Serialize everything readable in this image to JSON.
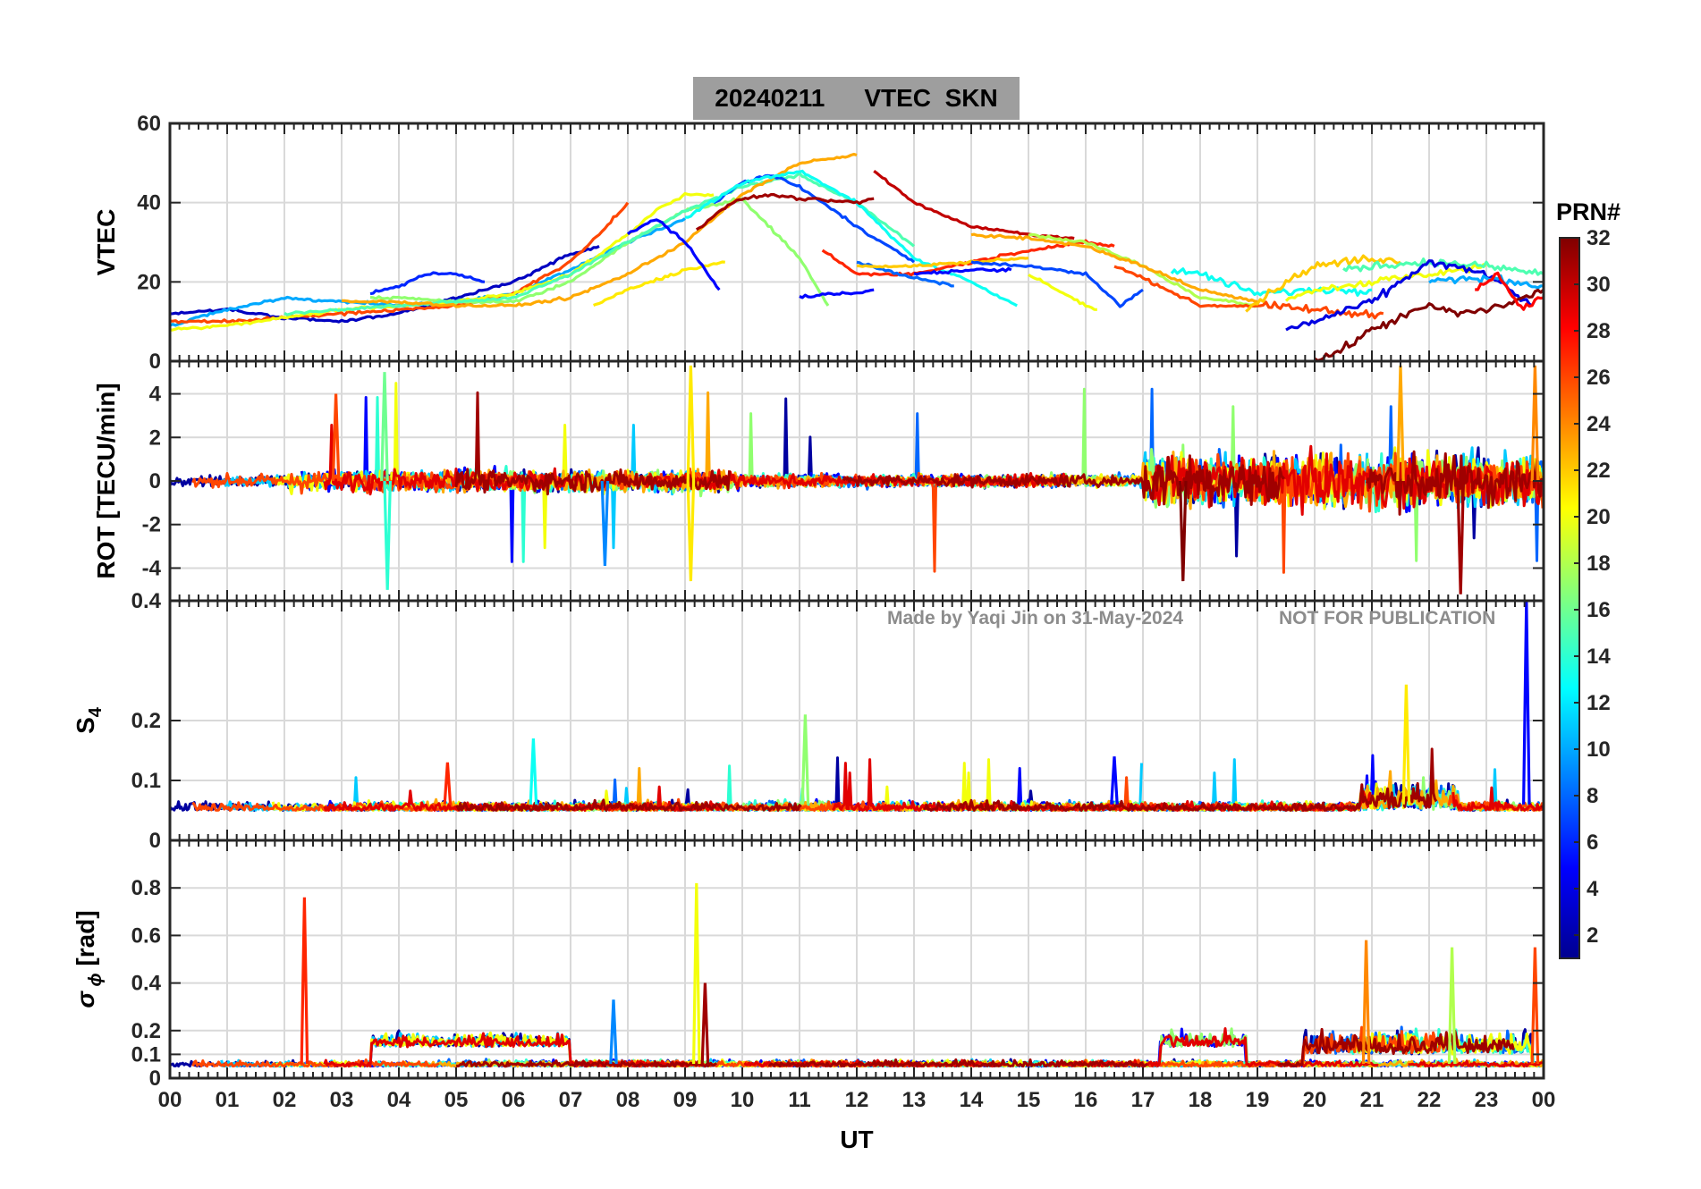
{
  "title": {
    "date": "20240211",
    "quantity": "VTEC",
    "station": "SKN"
  },
  "watermark": {
    "credit": "Made by Yaqi Jin on 31-May-2024",
    "notice": "NOT FOR PUBLICATION"
  },
  "colorbar": {
    "label": "PRN#",
    "ticks": [
      "2",
      "4",
      "6",
      "8",
      "10",
      "12",
      "14",
      "16",
      "18",
      "20",
      "22",
      "24",
      "26",
      "28",
      "30",
      "32"
    ],
    "range": [
      1,
      32
    ],
    "colormap": "jet"
  },
  "chart_data": [
    {
      "type": "line",
      "panel": "VTEC",
      "ylabel": "VTEC",
      "ylim": [
        0,
        60
      ],
      "yticks": [
        "0",
        "20",
        "40",
        "60"
      ],
      "xlim": [
        0,
        24
      ],
      "grid": true,
      "series": [
        {
          "prn": 3,
          "x": [
            0,
            1,
            2,
            3,
            4,
            5,
            6,
            7,
            7.5
          ],
          "y": [
            12,
            13,
            11,
            10,
            12,
            16,
            20,
            27,
            29
          ]
        },
        {
          "prn": 6,
          "x": [
            3.5,
            4,
            4.5,
            5,
            5.5
          ],
          "y": [
            17,
            19,
            22,
            22,
            20
          ]
        },
        {
          "prn": 10,
          "x": [
            0,
            1,
            2,
            3,
            4,
            5,
            6,
            7,
            8,
            9
          ],
          "y": [
            9,
            13,
            16,
            15,
            14,
            15,
            17,
            23,
            30,
            36
          ]
        },
        {
          "prn": 26,
          "x": [
            0,
            1,
            2,
            3,
            4,
            5,
            6,
            7,
            7.5,
            8
          ],
          "y": [
            10,
            10,
            11,
            12,
            13,
            14,
            17,
            25,
            32,
            40
          ]
        },
        {
          "prn": 20,
          "x": [
            0,
            1,
            2,
            3,
            4,
            5,
            6,
            7,
            8,
            8.5,
            9,
            9.5
          ],
          "y": [
            8,
            9,
            11,
            13,
            14,
            15,
            17,
            22,
            32,
            38,
            42,
            42
          ]
        },
        {
          "prn": 17,
          "x": [
            3.5,
            4,
            5,
            6,
            7,
            8,
            9,
            10,
            11,
            11.5
          ],
          "y": [
            16,
            16,
            15,
            15,
            20,
            30,
            38,
            41,
            26,
            14
          ]
        },
        {
          "prn": 15,
          "x": [
            2,
            3,
            4,
            5,
            6,
            7,
            8,
            9,
            10,
            11,
            12,
            13
          ],
          "y": [
            12,
            13,
            14,
            15,
            16,
            22,
            30,
            38,
            44,
            47,
            40,
            29
          ]
        },
        {
          "prn": 23,
          "x": [
            3,
            4,
            5,
            6,
            7,
            8,
            9,
            10,
            11,
            12
          ],
          "y": [
            15,
            15,
            14,
            14,
            16,
            22,
            30,
            42,
            50,
            52
          ]
        },
        {
          "prn": 21,
          "x": [
            7.4,
            8,
            9,
            9.7
          ],
          "y": [
            14,
            18,
            23,
            25
          ]
        },
        {
          "prn": 5,
          "x": [
            8,
            8.5,
            9,
            9.6
          ],
          "y": [
            32,
            36,
            30,
            18
          ]
        },
        {
          "prn": 7,
          "x": [
            9.5,
            10,
            10.5,
            11,
            12,
            13
          ],
          "y": [
            40,
            45,
            47,
            44,
            34,
            25
          ]
        },
        {
          "prn": 13,
          "x": [
            9,
            10,
            11,
            12,
            13,
            14,
            14.8
          ],
          "y": [
            36,
            45,
            48,
            40,
            26,
            20,
            14
          ]
        },
        {
          "prn": 31,
          "x": [
            9.2,
            9.6,
            10,
            10.5,
            11,
            12,
            12.3
          ],
          "y": [
            33,
            38,
            41,
            42,
            41,
            40,
            41
          ]
        },
        {
          "prn": 27,
          "x": [
            11.4,
            12,
            13,
            14,
            15,
            16,
            16.5
          ],
          "y": [
            28,
            22,
            22,
            25,
            28,
            30,
            29
          ]
        },
        {
          "prn": 30,
          "x": [
            12.3,
            13,
            14,
            15,
            15.8
          ],
          "y": [
            48,
            40,
            34,
            32,
            31
          ]
        },
        {
          "prn": 5,
          "x": [
            11,
            11.5,
            12,
            12.3
          ],
          "y": [
            16,
            17,
            17,
            18
          ]
        },
        {
          "prn": 8,
          "x": [
            12,
            13,
            13.7
          ],
          "y": [
            25,
            21,
            19
          ]
        },
        {
          "prn": 5,
          "x": [
            13,
            14,
            14.7
          ],
          "y": [
            22,
            23,
            23
          ]
        },
        {
          "prn": 22,
          "x": [
            12,
            13,
            14,
            15
          ],
          "y": [
            24,
            24,
            25,
            26
          ]
        },
        {
          "prn": 18,
          "x": [
            15,
            16,
            17,
            18,
            19
          ],
          "y": [
            32,
            30,
            24,
            16,
            14
          ]
        },
        {
          "prn": 23,
          "x": [
            14,
            15,
            16,
            17,
            18,
            19
          ],
          "y": [
            32,
            31,
            29,
            24,
            18,
            15
          ]
        },
        {
          "prn": 7,
          "x": [
            14,
            15,
            16,
            16.6,
            17
          ],
          "y": [
            25,
            24,
            22,
            14,
            18
          ]
        },
        {
          "prn": 20,
          "x": [
            15,
            16,
            16.2
          ],
          "y": [
            22,
            14,
            13
          ]
        },
        {
          "prn": 26,
          "x": [
            16.5,
            17,
            18,
            19,
            20,
            20.6,
            21.2
          ],
          "y": [
            24,
            21,
            14,
            14,
            13,
            12,
            12
          ]
        },
        {
          "prn": 13,
          "x": [
            17.5,
            18,
            19,
            20,
            21
          ],
          "y": [
            23,
            22,
            17,
            18,
            18
          ]
        },
        {
          "prn": 22,
          "x": [
            18.8,
            19.5,
            20,
            21,
            21.5
          ],
          "y": [
            13,
            20,
            24,
            26,
            25
          ]
        },
        {
          "prn": 20,
          "x": [
            19.5,
            20,
            21,
            22,
            23
          ],
          "y": [
            16,
            18,
            20,
            22,
            24
          ]
        },
        {
          "prn": 15,
          "x": [
            20.5,
            21,
            22,
            23,
            24
          ],
          "y": [
            23,
            24,
            25,
            24,
            22
          ]
        },
        {
          "prn": 4,
          "x": [
            19.5,
            20,
            21,
            22,
            23,
            23.8
          ],
          "y": [
            8,
            10,
            15,
            25,
            22,
            14
          ]
        },
        {
          "prn": 10,
          "x": [
            22,
            23,
            24
          ],
          "y": [
            20,
            21,
            19
          ]
        },
        {
          "prn": 32,
          "x": [
            20,
            20.5,
            21,
            21.5,
            22,
            22.5,
            23,
            23.5,
            24
          ],
          "y": [
            0,
            3,
            8,
            11,
            14,
            12,
            13,
            15,
            18
          ]
        },
        {
          "prn": 28,
          "x": [
            22.8,
            23.2,
            23.6,
            24
          ],
          "y": [
            18,
            22,
            13,
            16
          ]
        }
      ]
    },
    {
      "type": "line",
      "panel": "ROT",
      "ylabel": "ROT [TECU/min]",
      "ylim": [
        -5.5,
        5.5
      ],
      "yticks": [
        "-4",
        "-2",
        "0",
        "2",
        "4"
      ],
      "xlim": [
        0,
        24
      ],
      "grid": true,
      "series_note": "noisy traces near 0, increasing spread after 17 UT"
    },
    {
      "type": "line",
      "panel": "S4",
      "ylabel": "S4",
      "ylim": [
        0,
        0.4
      ],
      "yticks": [
        "0",
        "0.1",
        "0.2",
        "0.4"
      ],
      "xlim": [
        0,
        24
      ],
      "grid": true,
      "series_note": "background near 0.05; spikes to 0.25 near 21.5 UT and 0.4 near 23.7 UT"
    },
    {
      "type": "line",
      "panel": "sigma_phi",
      "ylabel": "σ ϕ [rad]",
      "ylim": [
        0,
        1.0
      ],
      "yticks": [
        "0",
        "0.1",
        "0.2",
        "0.4",
        "0.6",
        "0.8"
      ],
      "xlim": [
        0,
        24
      ],
      "grid": true,
      "series_note": "background 0.05-0.1; spikes 0.76 at 2.3 UT, 0.82 at 9.2 UT, up to 0.55 after 20 UT"
    }
  ],
  "x_axis": {
    "label": "UT",
    "ticks": [
      "00",
      "01",
      "02",
      "03",
      "04",
      "05",
      "06",
      "07",
      "08",
      "09",
      "10",
      "11",
      "12",
      "13",
      "14",
      "15",
      "16",
      "17",
      "18",
      "19",
      "20",
      "21",
      "22",
      "23",
      "00"
    ]
  }
}
